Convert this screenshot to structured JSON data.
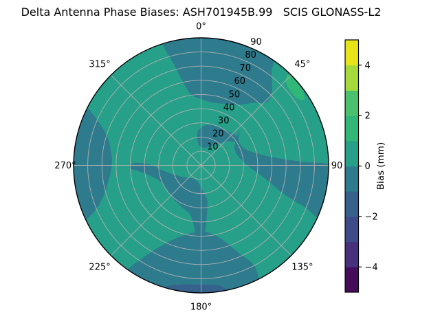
{
  "title": "Delta Antenna Phase Biases: ASH701945B.99   SCIS GLONASS-L2",
  "chart_data": {
    "type": "polar_filled_contour",
    "title": "Delta Antenna Phase Biases: ASH701945B.99   SCIS GLONASS-L2",
    "grid": {
      "color": "#b0b0b0",
      "spokes_deg": [
        0,
        45,
        90,
        135,
        180,
        225,
        270,
        315
      ],
      "rings": [
        10,
        20,
        30,
        40,
        50,
        60,
        70,
        80
      ]
    },
    "radial_range": [
      0,
      90
    ],
    "radial_label_angle_deg": 22.5,
    "angular_ticks": [
      {
        "deg": 0,
        "label": "0°"
      },
      {
        "deg": 45,
        "label": "45°"
      },
      {
        "deg": 90,
        "label": "90"
      },
      {
        "deg": 135,
        "label": "135°"
      },
      {
        "deg": 180,
        "label": "180°"
      },
      {
        "deg": 225,
        "label": "225°"
      },
      {
        "deg": 270,
        "label": "270°"
      },
      {
        "deg": 315,
        "label": "315°"
      }
    ],
    "radial_ticks": [
      {
        "r": 10,
        "label": "10"
      },
      {
        "r": 20,
        "label": "20"
      },
      {
        "r": 30,
        "label": "30"
      },
      {
        "r": 40,
        "label": "40"
      },
      {
        "r": 50,
        "label": "50"
      },
      {
        "r": 60,
        "label": "60"
      },
      {
        "r": 70,
        "label": "70"
      },
      {
        "r": 80,
        "label": "80"
      },
      {
        "r": 90,
        "label": "90"
      }
    ],
    "base_band": {
      "bias_mm_range": [
        0,
        1
      ],
      "color": "#27a089"
    },
    "regions": [
      {
        "name": "top-lobe",
        "bias_mm_range": [
          -1,
          0
        ],
        "color": "#2e7b8e",
        "vertices_az_r": [
          [
            -17,
            1.03
          ],
          [
            -5,
            1.03
          ],
          [
            8,
            1.03
          ],
          [
            20,
            1.03
          ],
          [
            33,
            1.03
          ],
          [
            37,
            0.92
          ],
          [
            44,
            0.8
          ],
          [
            46,
            0.71
          ],
          [
            40,
            0.64
          ],
          [
            32,
            0.56
          ],
          [
            22,
            0.52
          ],
          [
            10,
            0.5
          ],
          [
            0,
            0.52
          ],
          [
            -8,
            0.56
          ],
          [
            -12,
            0.66
          ],
          [
            -15,
            0.82
          ]
        ]
      },
      {
        "name": "right-lobe",
        "bias_mm_range": [
          -1,
          0
        ],
        "color": "#2e7b8e",
        "vertices_az_r": [
          [
            48,
            0.4
          ],
          [
            58,
            0.35
          ],
          [
            70,
            0.37
          ],
          [
            80,
            0.48
          ],
          [
            85,
            0.62
          ],
          [
            88,
            0.8
          ],
          [
            90,
            1.03
          ],
          [
            97,
            1.03
          ],
          [
            106,
            1.03
          ],
          [
            114,
            1.02
          ],
          [
            112,
            0.88
          ],
          [
            109,
            0.68
          ],
          [
            102,
            0.52
          ],
          [
            92,
            0.38
          ],
          [
            80,
            0.31
          ],
          [
            65,
            0.29
          ],
          [
            55,
            0.33
          ]
        ]
      },
      {
        "name": "center-upper-patch",
        "bias_mm_range": [
          -1,
          0
        ],
        "color": "#2e7b8e",
        "vertices_az_r": [
          [
            -6,
            0.16
          ],
          [
            5,
            0.14
          ],
          [
            20,
            0.15
          ],
          [
            35,
            0.2
          ],
          [
            48,
            0.28
          ],
          [
            55,
            0.33
          ],
          [
            50,
            0.36
          ],
          [
            38,
            0.34
          ],
          [
            22,
            0.33
          ],
          [
            8,
            0.32
          ],
          [
            -4,
            0.28
          ],
          [
            -8,
            0.22
          ]
        ]
      },
      {
        "name": "bottom-lobe",
        "bias_mm_range": [
          -1,
          0
        ],
        "color": "#2e7b8e",
        "vertices_az_r": [
          [
            152,
            0.9
          ],
          [
            155,
            1.03
          ],
          [
            165,
            1.03
          ],
          [
            180,
            1.03
          ],
          [
            195,
            1.03
          ],
          [
            208,
            1.03
          ],
          [
            215,
            1.02
          ],
          [
            212,
            0.85
          ],
          [
            205,
            0.68
          ],
          [
            196,
            0.58
          ],
          [
            186,
            0.53
          ],
          [
            178,
            0.52
          ],
          [
            170,
            0.55
          ],
          [
            163,
            0.62
          ],
          [
            157,
            0.74
          ]
        ]
      },
      {
        "name": "left-rim-lobe",
        "bias_mm_range": [
          -1,
          0
        ],
        "color": "#2e7b8e",
        "vertices_az_r": [
          [
            245,
            1.03
          ],
          [
            254,
            1.03
          ],
          [
            264,
            1.03
          ],
          [
            274,
            1.03
          ],
          [
            284,
            1.03
          ],
          [
            292,
            1.03
          ],
          [
            297,
            1.02
          ],
          [
            294,
            0.9
          ],
          [
            288,
            0.78
          ],
          [
            280,
            0.72
          ],
          [
            270,
            0.7
          ],
          [
            260,
            0.74
          ],
          [
            252,
            0.81
          ],
          [
            247,
            0.9
          ]
        ]
      },
      {
        "name": "center-lower-patch",
        "bias_mm_range": [
          -1,
          0
        ],
        "color": "#2e7b8e",
        "vertices_az_r": [
          [
            170,
            0.28
          ],
          [
            174,
            0.42
          ],
          [
            177,
            0.55
          ],
          [
            179,
            0.62
          ],
          [
            183,
            0.6
          ],
          [
            186,
            0.5
          ],
          [
            192,
            0.4
          ],
          [
            205,
            0.36
          ],
          [
            220,
            0.34
          ],
          [
            238,
            0.33
          ],
          [
            252,
            0.36
          ],
          [
            262,
            0.45
          ],
          [
            268,
            0.56
          ],
          [
            272,
            0.52
          ],
          [
            271,
            0.4
          ],
          [
            262,
            0.3
          ],
          [
            248,
            0.21
          ],
          [
            230,
            0.15
          ],
          [
            210,
            0.12
          ],
          [
            192,
            0.13
          ],
          [
            180,
            0.17
          ],
          [
            174,
            0.22
          ]
        ]
      },
      {
        "name": "rim-sliver-upper-right",
        "bias_mm_range": [
          1,
          2
        ],
        "color": "#31b778",
        "vertices_az_r": [
          [
            44,
            0.99
          ],
          [
            50,
            0.995
          ],
          [
            57,
            0.97
          ],
          [
            56,
            0.925
          ],
          [
            50,
            0.91
          ],
          [
            45,
            0.94
          ]
        ]
      },
      {
        "name": "rim-sliver-bottom",
        "bias_mm_range": [
          -2,
          -1
        ],
        "color": "#36618d",
        "vertices_az_r": [
          [
            170,
            1.02
          ],
          [
            180,
            1.03
          ],
          [
            193,
            1.02
          ],
          [
            196,
            0.99
          ],
          [
            190,
            0.95
          ],
          [
            180,
            0.935
          ],
          [
            172,
            0.95
          ],
          [
            169,
            0.985
          ]
        ]
      }
    ],
    "colorbar": {
      "label": "Bias (mm)",
      "range": [
        -5,
        5
      ],
      "tick_values": [
        4,
        2,
        0,
        -2,
        -4
      ],
      "tick_labels": [
        "4",
        "2",
        "0",
        "−2",
        "−4"
      ],
      "band_colors_bottom_to_top": [
        "#450d59",
        "#47317e",
        "#3d4b89",
        "#36618d",
        "#2e7b8e",
        "#27a089",
        "#31b778",
        "#4ac16d",
        "#a4da39",
        "#e6e419"
      ]
    }
  }
}
